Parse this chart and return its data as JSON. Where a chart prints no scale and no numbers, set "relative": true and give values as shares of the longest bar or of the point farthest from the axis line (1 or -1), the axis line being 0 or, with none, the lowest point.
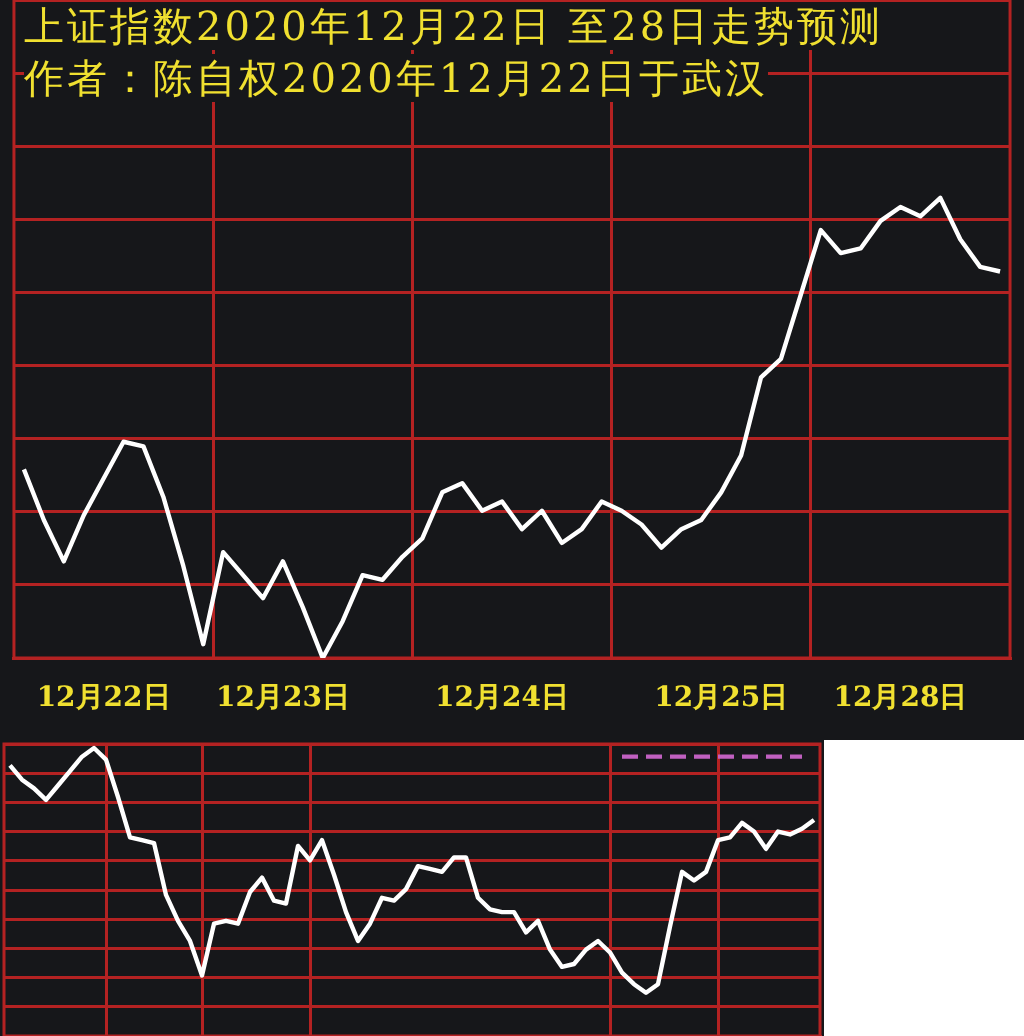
{
  "chart_data": [
    {
      "type": "line",
      "title": "上证指数2020年12月22日 至28日走势预测",
      "subtitle": "作者：陈自权2020年12月22日于武汉",
      "relative": true,
      "categories": [
        null,
        null,
        null,
        null,
        "12月22日",
        null,
        null,
        null,
        null,
        null,
        null,
        null,
        null,
        "12月23日",
        null,
        null,
        null,
        null,
        null,
        null,
        null,
        null,
        null,
        null,
        "12月24日",
        null,
        null,
        null,
        null,
        null,
        null,
        null,
        null,
        null,
        null,
        "12月25日",
        null,
        null,
        null,
        null,
        null,
        null,
        null,
        null,
        "12月28日",
        null,
        null,
        null,
        null,
        null
      ],
      "tick_labels": "x",
      "grid": true,
      "legend": false,
      "marker": "none",
      "series": [
        {
          "color": "#ffffff",
          "values": [
            0.41,
            0.3,
            0.21,
            0.31,
            0.39,
            0.47,
            0.46,
            0.35,
            0.2,
            0.03,
            0.23,
            0.18,
            0.13,
            0.21,
            0.11,
            0,
            0.08,
            0.18,
            0.17,
            0.22,
            0.26,
            0.36,
            0.38,
            0.32,
            0.34,
            0.28,
            0.32,
            0.25,
            0.28,
            0.34,
            0.32,
            0.29,
            0.24,
            0.28,
            0.3,
            0.36,
            0.44,
            0.61,
            0.65,
            0.79,
            0.93,
            0.88,
            0.89,
            0.95,
            0.98,
            0.96,
            1,
            0.91,
            0.85,
            0.84
          ]
        }
      ]
    },
    {
      "type": "line",
      "relative": true,
      "categories": [
        null,
        null,
        null,
        null,
        null,
        null,
        null,
        null,
        null,
        null,
        null,
        null,
        null,
        null,
        null,
        null,
        null,
        null,
        null,
        null,
        null,
        null,
        null,
        null,
        null,
        null,
        null,
        null,
        null,
        null,
        null,
        null,
        null,
        null,
        null,
        null,
        null,
        null,
        null,
        null,
        null,
        null,
        null,
        null,
        null,
        null,
        null,
        null,
        null,
        null,
        null,
        null,
        null,
        null,
        null,
        null,
        null,
        null,
        null,
        null,
        null,
        null,
        null,
        null,
        null,
        null,
        null,
        null
      ],
      "tick_labels": false,
      "grid": true,
      "legend": false,
      "marker": "none",
      "series": [
        {
          "color": "#ffffff",
          "values": [
            0.94,
            0.89,
            0.86,
            0.82,
            0.87,
            0.92,
            0.97,
            1,
            0.96,
            0.83,
            0.69,
            0.68,
            0.67,
            0.49,
            0.4,
            0.33,
            0.21,
            0.39,
            0.4,
            0.39,
            0.5,
            0.55,
            0.47,
            0.46,
            0.66,
            0.61,
            0.68,
            0.56,
            0.43,
            0.33,
            0.39,
            0.48,
            0.47,
            0.51,
            0.59,
            0.58,
            0.57,
            0.62,
            0.62,
            0.48,
            0.44,
            0.43,
            0.43,
            0.36,
            0.4,
            0.3,
            0.24,
            0.25,
            0.3,
            0.33,
            0.29,
            0.22,
            0.18,
            0.15,
            0.18,
            0.38,
            0.57,
            0.54,
            0.57,
            0.68,
            0.69,
            0.74,
            0.71,
            0.65,
            0.71,
            0.7,
            0.72,
            0.75
          ]
        },
        {
          "color": "#c060c0",
          "line_style": "dashed",
          "values": [
            null,
            null,
            null,
            null,
            null,
            null,
            null,
            null,
            null,
            null,
            null,
            null,
            null,
            null,
            null,
            null,
            null,
            null,
            null,
            null,
            null,
            null,
            null,
            null,
            null,
            null,
            null,
            null,
            null,
            null,
            null,
            null,
            null,
            null,
            null,
            null,
            null,
            null,
            null,
            null,
            null,
            null,
            null,
            null,
            null,
            null,
            null,
            null,
            null,
            null,
            null,
            0.97,
            0.97,
            0.97,
            0.97,
            0.97,
            0.97,
            0.97,
            0.97,
            0.97,
            0.97,
            0.97,
            0.97,
            0.97,
            0.97,
            0.97,
            0.97,
            null
          ]
        }
      ]
    }
  ]
}
